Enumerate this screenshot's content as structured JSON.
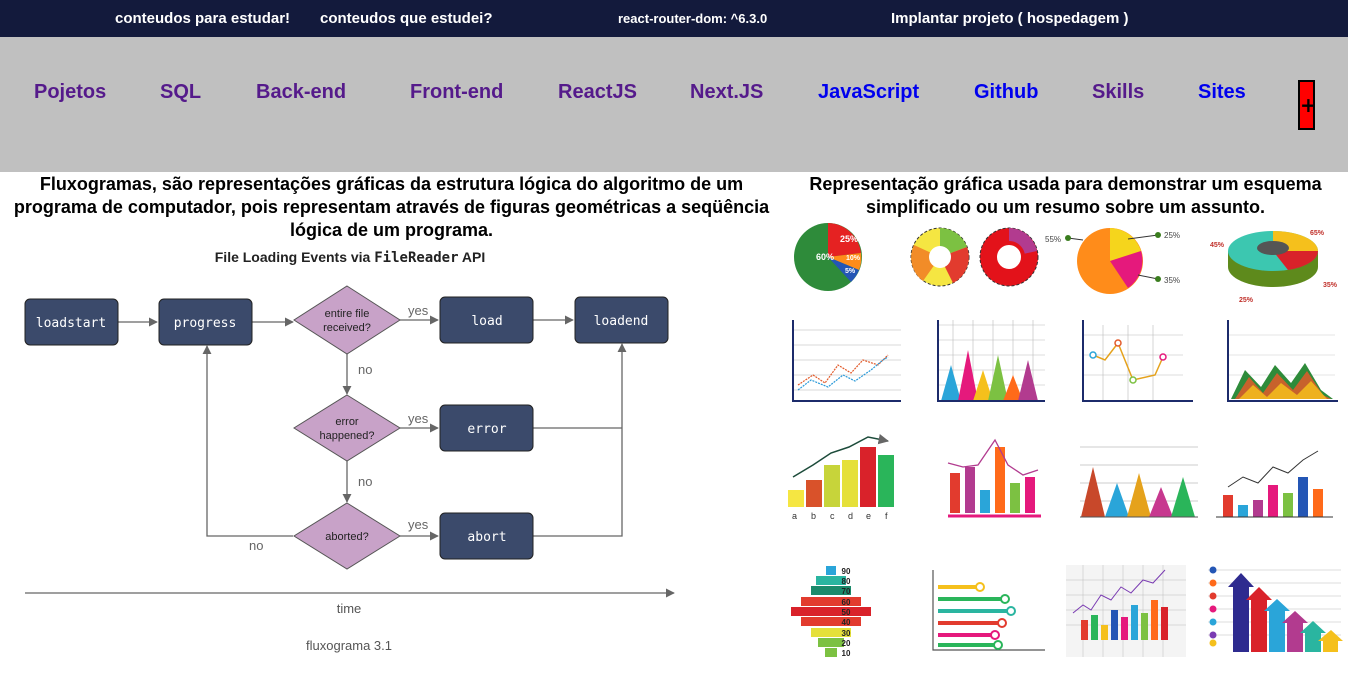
{
  "top_nav": [
    "conteudos para estudar!",
    "conteudos que estudei?",
    "react-router-dom: ^6.3.0",
    "Implantar projeto ( hospedagem )"
  ],
  "main_nav": [
    "Pojetos",
    "SQL",
    "Back-end",
    "Front-end",
    "ReactJS",
    "Next.JS",
    "JavaScript",
    "Github",
    "Skills",
    "Sites"
  ],
  "menu_toggle": "+",
  "left_caption": "Fluxogramas, são representações gráficas da estrutura lógica do algoritmo de um programa de computador, pois representam através de figuras geométricas a seqüência lógica de um programa.",
  "right_caption": "Representação gráfica usada para demonstrar um esquema simplificado ou um resumo sobre um assunto.",
  "flowchart": {
    "title": "File Loading Events via",
    "title_code": "FileReader",
    "title_suffix": "API",
    "nodes": {
      "loadstart": "loadstart",
      "progress": "progress",
      "entire_1": "entire file",
      "entire_2": "received?",
      "load": "load",
      "loadend": "loadend",
      "error_q_1": "error",
      "error_q_2": "happened?",
      "error": "error",
      "aborted_q": "aborted?",
      "abort": "abort"
    },
    "edges": {
      "yes1": "yes",
      "yes2": "yes",
      "yes3": "yes",
      "no1": "no",
      "no2": "no",
      "no3": "no"
    },
    "axis_label": "time",
    "figure_caption": "fluxograma 3.1"
  },
  "chart_icons": {
    "pie1": [
      "60%",
      "25%",
      "10%",
      "5%"
    ],
    "pie3": [
      "55%",
      "25%",
      "35%"
    ],
    "donut3d": [
      "45%",
      "65%",
      "25%",
      "35%"
    ],
    "bar_letters": [
      "a",
      "b",
      "c",
      "d",
      "e",
      "f"
    ],
    "pyramid": [
      "90",
      "80",
      "70",
      "60",
      "50",
      "40",
      "30",
      "20",
      "10"
    ]
  },
  "colors": {
    "topbar": "#131a3c",
    "navbar": "#c0c0c0",
    "node": "#3b4a6b",
    "diamond": "#c8a2c8",
    "menu_toggle": "#ff0000"
  }
}
